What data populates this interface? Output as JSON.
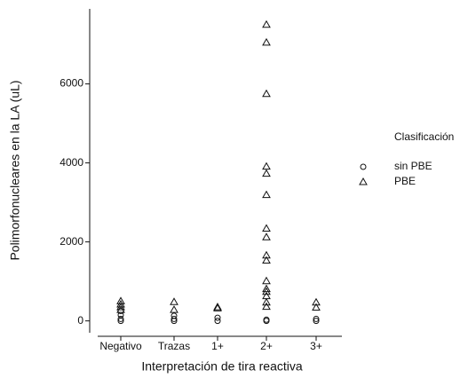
{
  "chart_data": {
    "type": "scatter",
    "x_label": "Interpretación de tira reactiva",
    "y_label": "Polimorfonucleares en la LA (uL)",
    "categories": [
      "Negativo",
      "Trazas",
      "1+",
      "2+",
      "3+"
    ],
    "ylim": [
      -300,
      7900
    ],
    "yticks": [
      0,
      2000,
      4000,
      6000
    ],
    "legend_title": "Clasificación",
    "legend": "right",
    "series": [
      {
        "name": "sin PBE",
        "marker": "circle",
        "color": "#111111",
        "x": [
          "Negativo",
          "Negativo",
          "Negativo",
          "Negativo",
          "Trazas",
          "Trazas",
          "Trazas",
          "1+",
          "1+",
          "2+",
          "2+",
          "3+",
          "3+"
        ],
        "values": [
          0,
          50,
          150,
          250,
          0,
          50,
          130,
          0,
          80,
          0,
          30,
          0,
          50
        ]
      },
      {
        "name": "PBE",
        "marker": "triangle",
        "color": "#111111",
        "x": [
          "Negativo",
          "Negativo",
          "Negativo",
          "Negativo",
          "Trazas",
          "Trazas",
          "1+",
          "1+",
          "2+",
          "2+",
          "2+",
          "2+",
          "2+",
          "2+",
          "2+",
          "2+",
          "2+",
          "2+",
          "2+",
          "2+",
          "2+",
          "2+",
          "2+",
          "2+",
          "3+",
          "3+"
        ],
        "values": [
          500,
          420,
          350,
          280,
          480,
          280,
          350,
          320,
          7500,
          7050,
          5750,
          3910,
          3730,
          3190,
          2340,
          2120,
          1660,
          1530,
          1010,
          810,
          740,
          630,
          470,
          360,
          470,
          340
        ]
      }
    ]
  }
}
